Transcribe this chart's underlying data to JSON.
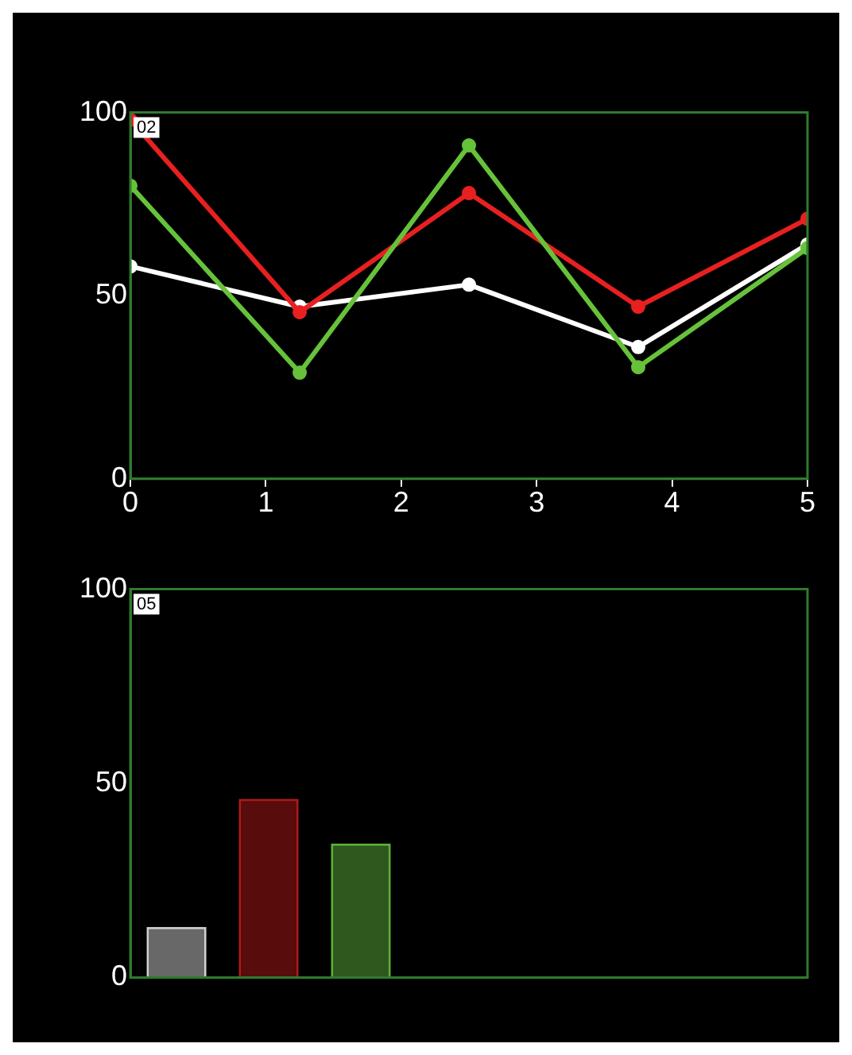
{
  "chart_data": [
    {
      "type": "line",
      "x": [
        0,
        1.25,
        2.5,
        3.75,
        5
      ],
      "marker": "circle",
      "xlim": [
        0,
        5
      ],
      "xticks": [
        0,
        1,
        2,
        3,
        4,
        5
      ],
      "ylim": [
        0,
        100
      ],
      "yticks": [
        0,
        50,
        100
      ],
      "annotations": [
        "02"
      ],
      "series": [
        {
          "color": "#ffffff",
          "values": [
            58,
            47,
            53,
            36,
            64
          ]
        },
        {
          "color": "#e82020",
          "values": [
            98,
            45.5,
            78,
            47,
            71
          ]
        },
        {
          "color": "#66c23a",
          "values": [
            80,
            29,
            91,
            30.5,
            63
          ]
        }
      ]
    },
    {
      "type": "bar",
      "categories": [
        null,
        null,
        null
      ],
      "values": [
        13,
        46,
        34.5
      ],
      "colors": [
        "#d0d0d0",
        "#b01818",
        "#5cb03c"
      ],
      "ylim": [
        0,
        100
      ],
      "yticks": [
        0,
        50,
        100
      ],
      "tick_labels": "y",
      "annotations": [
        "05"
      ]
    }
  ]
}
